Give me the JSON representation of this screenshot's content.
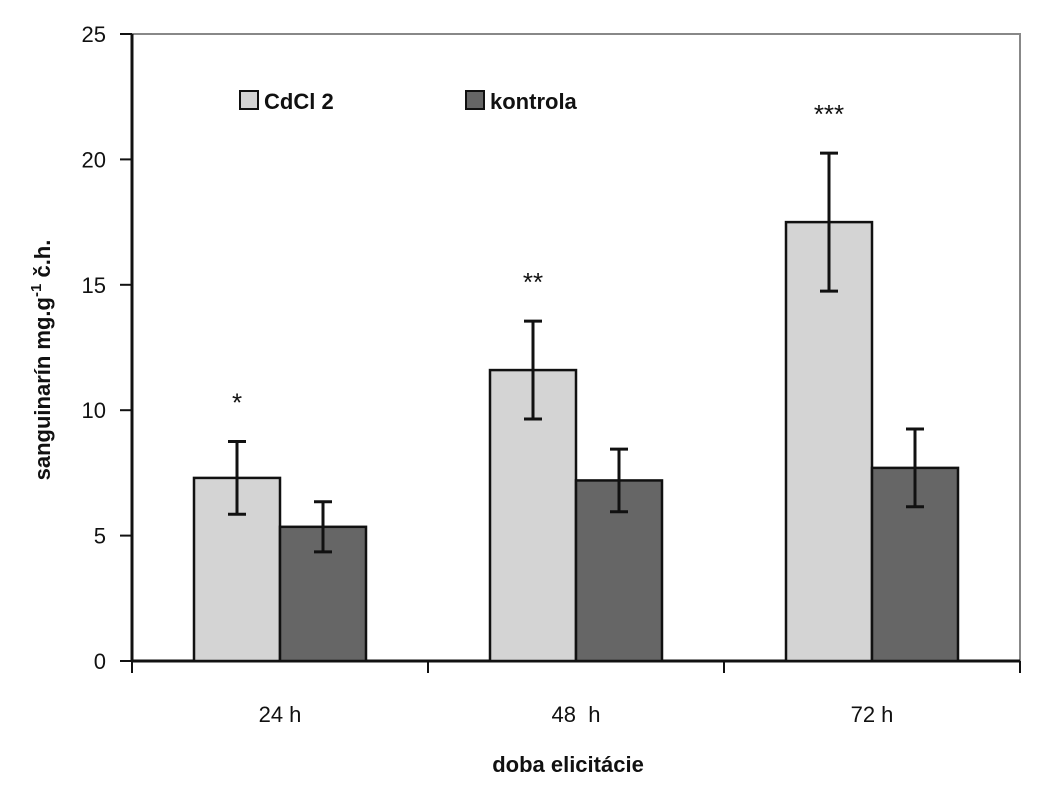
{
  "chart_data": {
    "type": "bar",
    "categories": [
      "24 h",
      "48  h",
      "72 h"
    ],
    "series": [
      {
        "name": "CdCl 2",
        "values": [
          7.3,
          11.6,
          17.5
        ],
        "error": [
          1.45,
          1.95,
          2.75
        ],
        "color": "#d4d4d4"
      },
      {
        "name": "kontrola",
        "values": [
          5.35,
          7.2,
          7.7
        ],
        "error": [
          1.0,
          1.25,
          1.55
        ],
        "color": "#666666"
      }
    ],
    "significance": [
      "*",
      "**",
      "***"
    ],
    "xlabel": "doba elicitácie",
    "ylabel_main": "sanguinarín  mg.g",
    "ylabel_sup": "-1",
    "ylabel_end": " č.h.",
    "ylim": [
      0,
      25
    ],
    "yticks": [
      0,
      5,
      10,
      15,
      20,
      25
    ],
    "grid": false,
    "legend_position": "top-left"
  }
}
